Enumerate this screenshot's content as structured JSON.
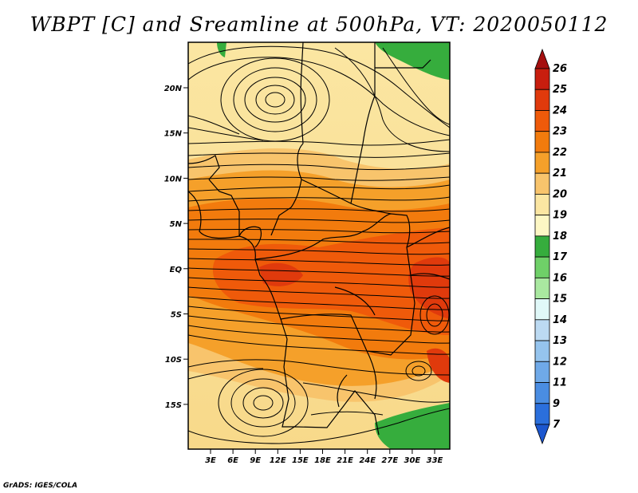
{
  "title": "WBPT [C] and Sreamline at 500hPa, VT: 2020050112",
  "credit": "GrADS: IGES/COLA",
  "map": {
    "lat_labels": [
      "20N",
      "15N",
      "10N",
      "5N",
      "EQ",
      "5S",
      "10S",
      "15S"
    ],
    "lon_labels": [
      "3E",
      "6E",
      "9E",
      "12E",
      "15E",
      "18E",
      "21E",
      "24E",
      "27E",
      "30E",
      "33E"
    ]
  },
  "colorbar": {
    "levels": [
      "26",
      "25",
      "24",
      "23",
      "22",
      "21",
      "20",
      "19",
      "18",
      "17",
      "16",
      "15",
      "14",
      "13",
      "12",
      "11",
      "9",
      "7"
    ],
    "colors": [
      "#a50f0f",
      "#c81e0e",
      "#e03a0c",
      "#ef5a0a",
      "#f27b0d",
      "#f5a02a",
      "#f8c46c",
      "#fbe6a2",
      "#fdf7c4",
      "#36ad3d",
      "#6fd068",
      "#a9e8a0",
      "#e0f8f8",
      "#bcdaf2",
      "#95c4ee",
      "#6fa9e8",
      "#4a8de2",
      "#2b6fdc",
      "#1c57cf"
    ]
  }
}
